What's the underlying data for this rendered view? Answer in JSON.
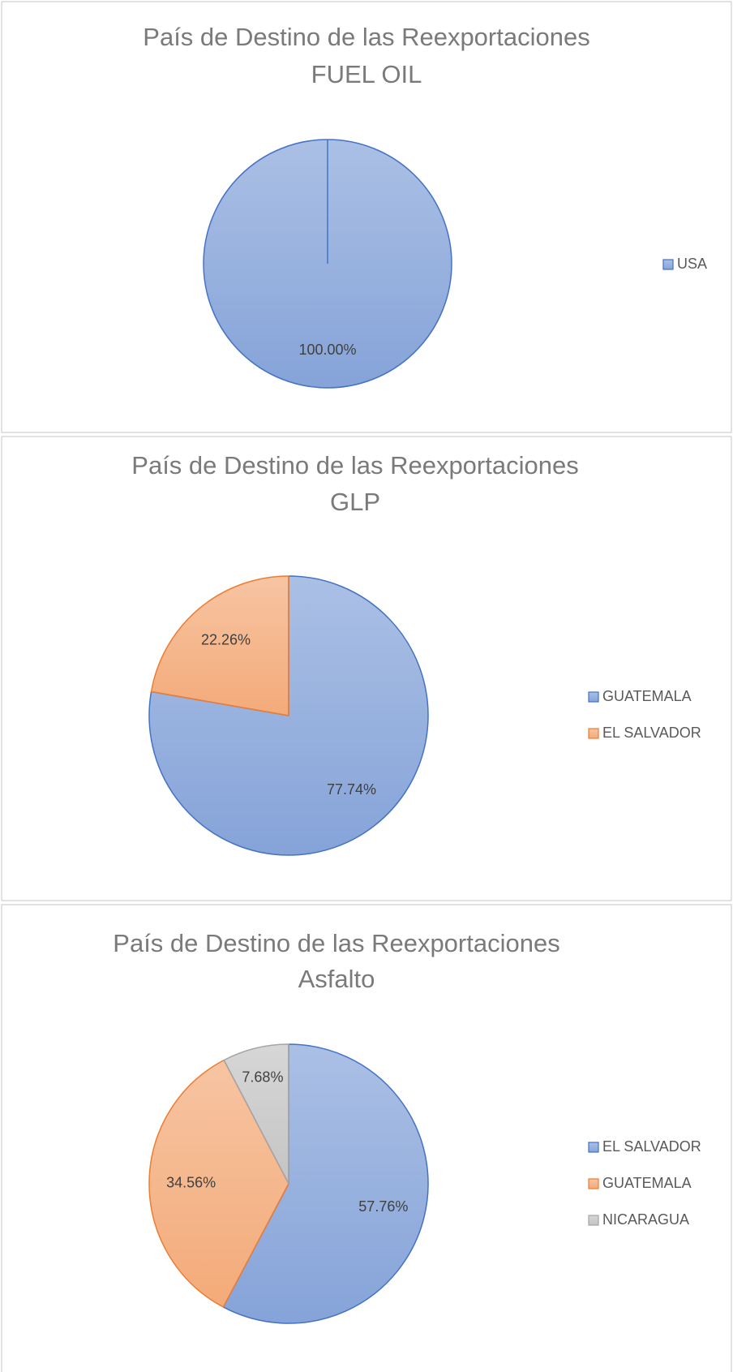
{
  "chart_data": [
    {
      "type": "pie",
      "title": "País de Destino de las Reexportaciones",
      "subtitle": "FUEL OIL",
      "categories": [
        "USA"
      ],
      "values": [
        100
      ],
      "value_labels": [
        "100.00%"
      ],
      "colors": [
        "#4472c4"
      ]
    },
    {
      "type": "pie",
      "title": "País de Destino de las Reexportaciones",
      "subtitle": "GLP",
      "categories": [
        "GUATEMALA",
        "EL SALVADOR"
      ],
      "values": [
        77.74,
        22.26
      ],
      "value_labels": [
        "77.74%",
        "22.26%"
      ],
      "colors": [
        "#4472c4",
        "#ed7d31"
      ]
    },
    {
      "type": "pie",
      "title": "País de Destino de las Reexportaciones",
      "subtitle": "Asfalto",
      "categories": [
        "EL SALVADOR",
        "GUATEMALA",
        "NICARAGUA"
      ],
      "values": [
        57.76,
        34.56,
        7.68
      ],
      "value_labels": [
        "57.76%",
        "34.56%",
        "7.68%"
      ],
      "colors": [
        "#4472c4",
        "#ed7d31",
        "#a5a5a5"
      ]
    }
  ]
}
